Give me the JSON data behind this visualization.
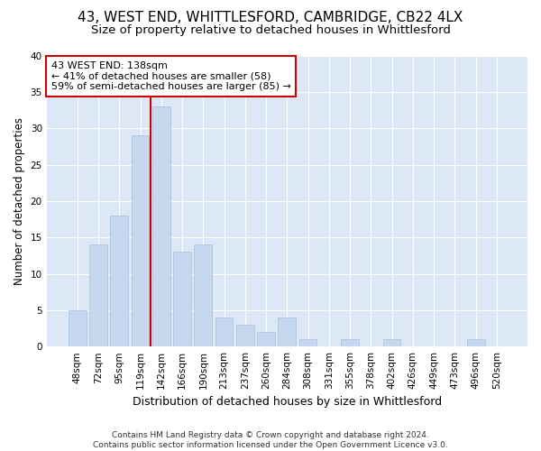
{
  "title1": "43, WEST END, WHITTLESFORD, CAMBRIDGE, CB22 4LX",
  "title2": "Size of property relative to detached houses in Whittlesford",
  "xlabel": "Distribution of detached houses by size in Whittlesford",
  "ylabel": "Number of detached properties",
  "categories": [
    "48sqm",
    "72sqm",
    "95sqm",
    "119sqm",
    "142sqm",
    "166sqm",
    "190sqm",
    "213sqm",
    "237sqm",
    "260sqm",
    "284sqm",
    "308sqm",
    "331sqm",
    "355sqm",
    "378sqm",
    "402sqm",
    "426sqm",
    "449sqm",
    "473sqm",
    "496sqm",
    "520sqm"
  ],
  "values": [
    5,
    14,
    18,
    29,
    33,
    13,
    14,
    4,
    3,
    2,
    4,
    1,
    0,
    1,
    0,
    1,
    0,
    0,
    0,
    1,
    0
  ],
  "bar_color": "#c5d8f0",
  "bar_edge_color": "#a8bfd8",
  "vline_color": "#cc0000",
  "vline_pos": 3.5,
  "annotation_text": "43 WEST END: 138sqm\n← 41% of detached houses are smaller (58)\n59% of semi-detached houses are larger (85) →",
  "annotation_box_color": "#ffffff",
  "annotation_box_edge": "#cc0000",
  "ylim": [
    0,
    40
  ],
  "yticks": [
    0,
    5,
    10,
    15,
    20,
    25,
    30,
    35,
    40
  ],
  "bg_color": "#dce8f5",
  "footer": "Contains HM Land Registry data © Crown copyright and database right 2024.\nContains public sector information licensed under the Open Government Licence v3.0.",
  "title1_fontsize": 11,
  "title2_fontsize": 9.5,
  "xlabel_fontsize": 9,
  "ylabel_fontsize": 8.5,
  "tick_fontsize": 7.5,
  "footer_fontsize": 6.5,
  "annot_fontsize": 8
}
